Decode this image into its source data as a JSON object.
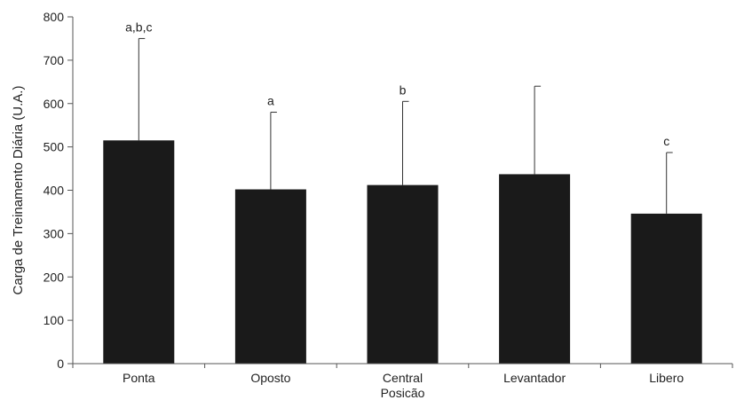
{
  "chart_data": {
    "type": "bar",
    "title": "",
    "xlabel": "Posicão",
    "ylabel": "Carga de Treinamento Diária (U.A.)",
    "ylim": [
      0,
      800
    ],
    "yticks": [
      0,
      100,
      200,
      300,
      400,
      500,
      600,
      700,
      800
    ],
    "grid": false,
    "categories": [
      "Ponta",
      "Oposto",
      "Central",
      "Levantador",
      "Libero"
    ],
    "series": [
      {
        "values": [
          515,
          402,
          412,
          437,
          346
        ],
        "error_upper": [
          750,
          580,
          605,
          640,
          487
        ],
        "color": "#1a1a1a"
      }
    ],
    "annotations": [
      "a,b,c",
      "a",
      "b",
      "",
      "c"
    ]
  }
}
